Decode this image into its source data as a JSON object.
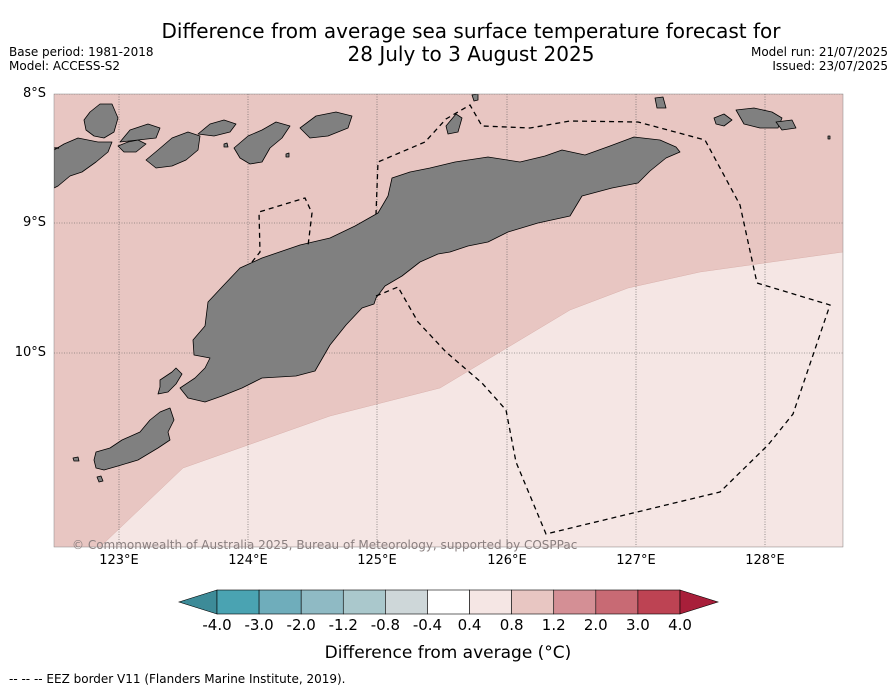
{
  "header": {
    "title_line1": "Difference from average sea surface temperature forecast for",
    "title_line2": "28 July to 3 August 2025",
    "base_period": "Base period: 1981-2018",
    "model": "Model: ACCESS-S2",
    "model_run": "Model run: 21/07/2025",
    "issued": "Issued: 23/07/2025"
  },
  "map": {
    "latitude_labels": [
      "8°S",
      "9°S",
      "10°S"
    ],
    "longitude_labels": [
      "123°E",
      "124°E",
      "125°E",
      "126°E",
      "127°E",
      "128°E"
    ],
    "extent": {
      "lon_min": 122.5,
      "lon_max": 128.6,
      "lat_min": -11.5,
      "lat_max": -8.0
    },
    "copyright": "© Commonwealth of Australia 2025, Bureau of Meteorology, supported by COSPPac",
    "colors": {
      "land": "#808080",
      "anomaly_0_4_to_0_8": "#f5e6e4",
      "anomaly_0_8_to_1_2": "#e8c6c2",
      "eez_border": "#000000"
    }
  },
  "colorbar": {
    "ticks": [
      "-4.0",
      "-3.0",
      "-2.0",
      "-1.2",
      "-0.8",
      "-0.4",
      "0.4",
      "0.8",
      "1.2",
      "2.0",
      "3.0",
      "4.0"
    ],
    "colors": [
      "#3d8b98",
      "#4aa3b2",
      "#6fadbb",
      "#8fbac4",
      "#aac8cc",
      "#ced7d9",
      "#ffffff",
      "#f5e6e4",
      "#e8c6c2",
      "#d48f95",
      "#c86a74",
      "#bd4353",
      "#a81f3a"
    ],
    "label": "Difference from average (°C)"
  },
  "legend_note": "--  --  -- EEZ border V11 (Flanders Marine Institute, 2019)."
}
